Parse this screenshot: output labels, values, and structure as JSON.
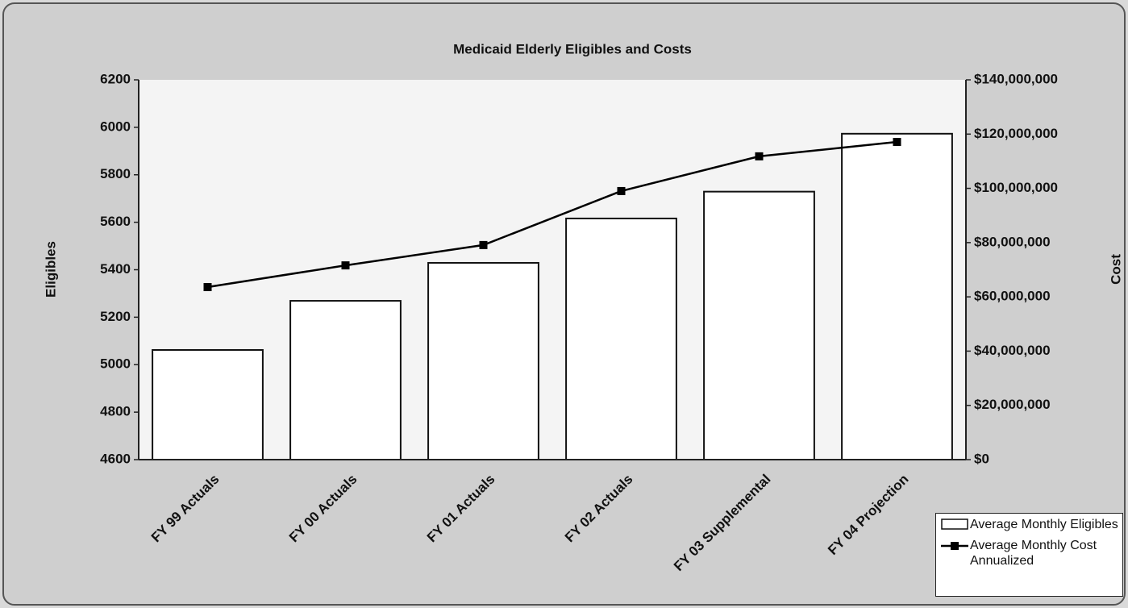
{
  "chart_data": {
    "type": "bar",
    "title": "Medicaid Elderly Eligibles and Costs",
    "categories": [
      "FY 99 Actuals",
      "FY 00 Actuals",
      "FY 01 Actuals",
      "FY 02 Actuals",
      "FY 03 Supplemental",
      "FY 04 Projection"
    ],
    "series": [
      {
        "name": "Average Monthly Eligibles",
        "type": "bar",
        "color": "#ffffff",
        "values": [
          5062,
          5269,
          5429,
          5616,
          5729,
          5973
        ]
      },
      {
        "name": "Average Monthly Cost Annualized",
        "type": "line",
        "axis": "y2",
        "color": "#000000",
        "values": [
          63600000,
          71600000,
          79100000,
          99000000,
          111800000,
          117100000
        ]
      }
    ],
    "y_label": "Eligibles",
    "y2_label": "Cost",
    "ylim": [
      4600,
      6200
    ],
    "yticks": [
      4600,
      4800,
      5000,
      5200,
      5400,
      5600,
      5800,
      6000,
      6200
    ],
    "y2lim": [
      0,
      140000000
    ],
    "y2ticks": [
      {
        "value": 0,
        "label": "$0"
      },
      {
        "value": 20000000,
        "label": "$20,000,000"
      },
      {
        "value": 40000000,
        "label": "$40,000,000"
      },
      {
        "value": 60000000,
        "label": "$60,000,000"
      },
      {
        "value": 80000000,
        "label": "$80,000,000"
      },
      {
        "value": 100000000,
        "label": "$100,000,000"
      },
      {
        "value": 120000000,
        "label": "$120,000,000"
      },
      {
        "value": 140000000,
        "label": "$140,000,000"
      }
    ],
    "legend": "bottom-right"
  }
}
